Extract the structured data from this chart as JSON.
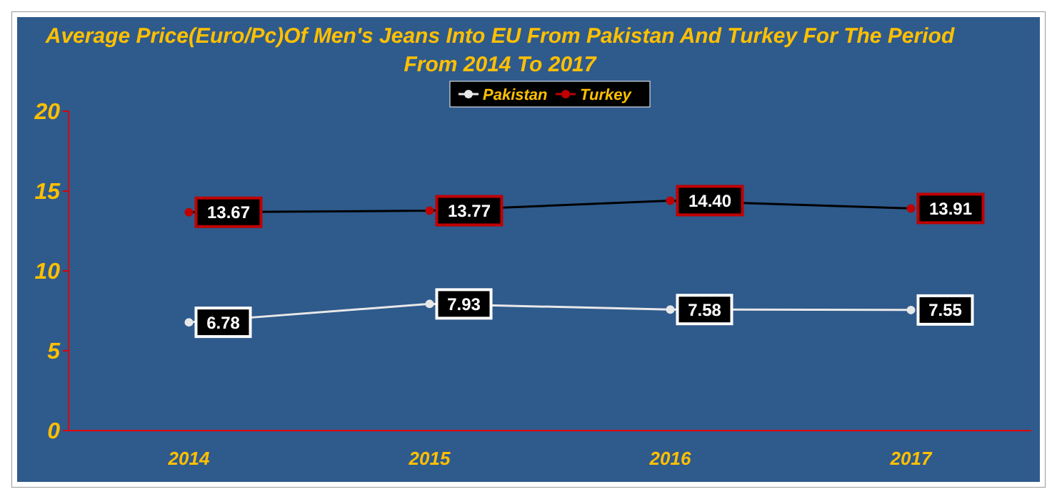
{
  "chart_data": {
    "type": "line",
    "title": "Average Price(Euro/Pc)Of Men's Jeans Into EU From Pakistan And Turkey For The Period From 2014 To 2017",
    "categories": [
      "2014",
      "2015",
      "2016",
      "2017"
    ],
    "series": [
      {
        "name": "Pakistan",
        "color": "#e8e8e8",
        "values": [
          6.78,
          7.93,
          7.58,
          7.55
        ],
        "value_labels": [
          "6.78",
          "7.93",
          "7.58",
          "7.55"
        ]
      },
      {
        "name": "Turkey",
        "color": "#000000",
        "values": [
          13.67,
          13.77,
          14.4,
          13.91
        ],
        "value_labels": [
          "13.67",
          "13.77",
          "14.40",
          "13.91"
        ]
      }
    ],
    "ylim": [
      0,
      20
    ],
    "yticks": [
      0,
      5,
      10,
      15,
      20
    ],
    "grid": false,
    "legend": "top",
    "marker": "circle"
  }
}
